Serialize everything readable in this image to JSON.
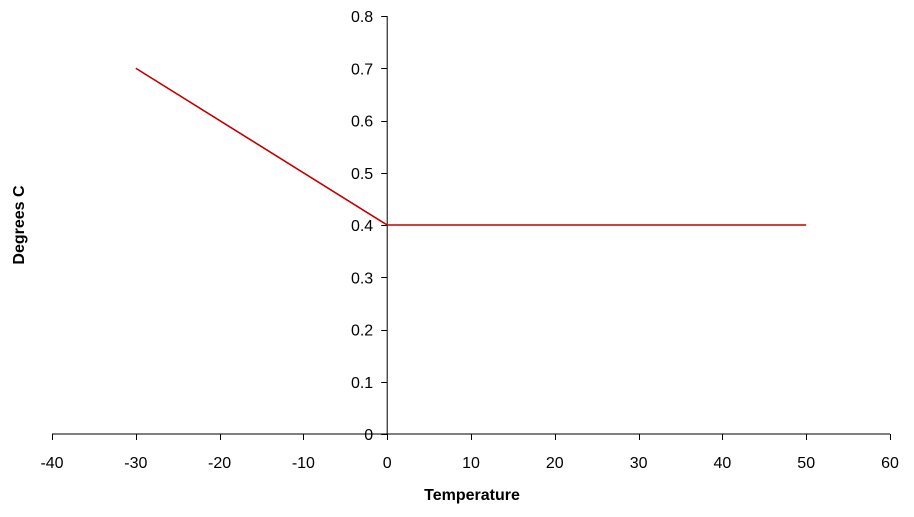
{
  "chart_data": {
    "type": "line",
    "title": "",
    "xlabel": "Temperature",
    "ylabel": "Degrees C",
    "xlim": [
      -40,
      60
    ],
    "ylim": [
      0,
      0.8
    ],
    "xticks": [
      -40,
      -30,
      -20,
      -10,
      0,
      10,
      20,
      30,
      40,
      50,
      60
    ],
    "yticks": [
      0,
      0.1,
      0.2,
      0.3,
      0.4,
      0.5,
      0.6,
      0.7,
      0.8
    ],
    "xtick_labels": [
      "-40",
      "-30",
      "-20",
      "-10",
      "0",
      "10",
      "20",
      "30",
      "40",
      "50",
      "60"
    ],
    "ytick_labels": [
      "0",
      "0.1",
      "0.2",
      "0.3",
      "0.4",
      "0.5",
      "0.6",
      "0.7",
      "0.8"
    ],
    "grid": false,
    "legend": "none",
    "series": [
      {
        "color": "#c00000",
        "x": [
          -30,
          0,
          50
        ],
        "y": [
          0.7,
          0.4,
          0.4
        ]
      }
    ]
  }
}
